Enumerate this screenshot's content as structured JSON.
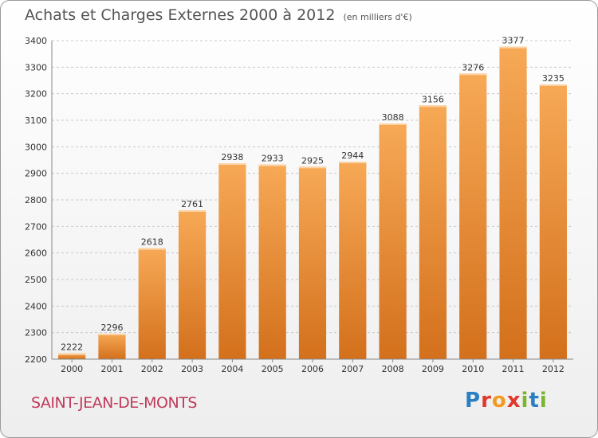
{
  "title": "Achats et Charges Externes 2000 à 2012",
  "unit": "(en milliers d'€)",
  "commune": "SAINT-JEAN-DE-MONTS",
  "logo": {
    "text": "Proxiti",
    "colors": [
      "#2a7fc4",
      "#e0392b",
      "#f39a1e",
      "#e0392b",
      "#7bb52e",
      "#2a7fc4",
      "#7bb52e"
    ]
  },
  "chart_data": {
    "type": "bar",
    "categories": [
      "2000",
      "2001",
      "2002",
      "2003",
      "2004",
      "2005",
      "2006",
      "2007",
      "2008",
      "2009",
      "2010",
      "2011",
      "2012"
    ],
    "values": [
      2222,
      2296,
      2618,
      2761,
      2938,
      2933,
      2925,
      2944,
      3088,
      3156,
      3276,
      3377,
      3235
    ],
    "ylim": [
      2200,
      3400
    ],
    "yticks": [
      2200,
      2300,
      2400,
      2500,
      2600,
      2700,
      2800,
      2900,
      3000,
      3100,
      3200,
      3300,
      3400
    ],
    "grid": true,
    "bar_color_top": "#f7a956",
    "bar_color_bottom": "#d3701c"
  }
}
